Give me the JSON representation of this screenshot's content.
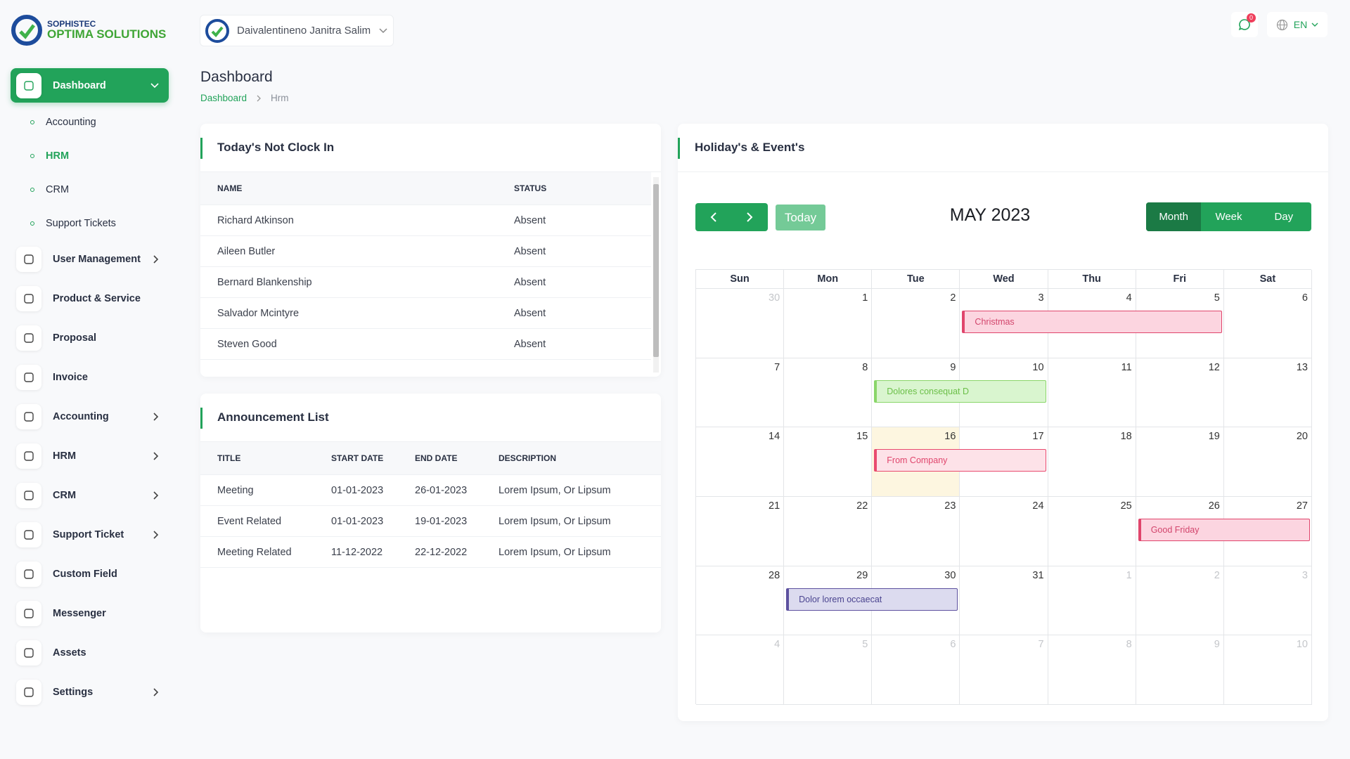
{
  "brand": {
    "name_top": "SOPHISTEC",
    "name_bottom": "OPTIMA SOLUTIONS"
  },
  "header": {
    "user": "Daivalentineno Janitra Salim",
    "notification_count": 0,
    "language": "EN"
  },
  "sidebar": {
    "items": [
      {
        "label": "Dashboard",
        "has_submenu": true,
        "children": [
          "Accounting",
          "HRM",
          "CRM",
          "Support Tickets"
        ]
      },
      {
        "label": "User Management",
        "has_submenu": true
      },
      {
        "label": "Product & Service",
        "has_submenu": false
      },
      {
        "label": "Proposal",
        "has_submenu": false
      },
      {
        "label": "Invoice",
        "has_submenu": false
      },
      {
        "label": "Accounting",
        "has_submenu": true
      },
      {
        "label": "HRM",
        "has_submenu": true
      },
      {
        "label": "CRM",
        "has_submenu": true
      },
      {
        "label": "Support Ticket",
        "has_submenu": true
      },
      {
        "label": "Custom Field",
        "has_submenu": false
      },
      {
        "label": "Messenger",
        "has_submenu": false
      },
      {
        "label": "Assets",
        "has_submenu": false
      },
      {
        "label": "Settings",
        "has_submenu": true
      }
    ]
  },
  "page": {
    "title": "Dashboard",
    "breadcrumb": [
      "Dashboard",
      "Hrm"
    ]
  },
  "clock_in": {
    "title": "Today's Not Clock In",
    "columns": [
      "NAME",
      "STATUS"
    ],
    "rows": [
      [
        "Richard Atkinson",
        "Absent"
      ],
      [
        "Aileen Butler",
        "Absent"
      ],
      [
        "Bernard Blankenship",
        "Absent"
      ],
      [
        "Salvador Mcintyre",
        "Absent"
      ],
      [
        "Steven Good",
        "Absent"
      ]
    ]
  },
  "announcements": {
    "title": "Announcement List",
    "columns": [
      "TITLE",
      "START DATE",
      "END DATE",
      "DESCRIPTION"
    ],
    "rows": [
      [
        "Meeting",
        "01-01-2023",
        "26-01-2023",
        "Lorem Ipsum, Or Lipsum"
      ],
      [
        "Event Related",
        "01-01-2023",
        "19-01-2023",
        "Lorem Ipsum, Or Lipsum"
      ],
      [
        "Meeting Related",
        "11-12-2022",
        "22-12-2022",
        "Lorem Ipsum, Or Lipsum"
      ]
    ]
  },
  "calendar": {
    "title": "Holiday's & Event's",
    "today_label": "Today",
    "period": "MAY 2023",
    "views": [
      "Month",
      "Week",
      "Day"
    ],
    "weekdays": [
      "Sun",
      "Mon",
      "Tue",
      "Wed",
      "Thu",
      "Fri",
      "Sat"
    ],
    "weeks": [
      [
        30,
        1,
        2,
        3,
        4,
        5,
        6
      ],
      [
        7,
        8,
        9,
        10,
        11,
        12,
        13
      ],
      [
        14,
        15,
        16,
        17,
        18,
        19,
        20
      ],
      [
        21,
        22,
        23,
        24,
        25,
        26,
        27
      ],
      [
        28,
        29,
        30,
        31,
        1,
        2,
        3
      ],
      [
        4,
        5,
        6,
        7,
        8,
        9,
        10
      ]
    ],
    "events": [
      "Christmas",
      "Dolores consequat D",
      "From Company",
      "Good Friday",
      "Dolor lorem occaecat"
    ]
  }
}
